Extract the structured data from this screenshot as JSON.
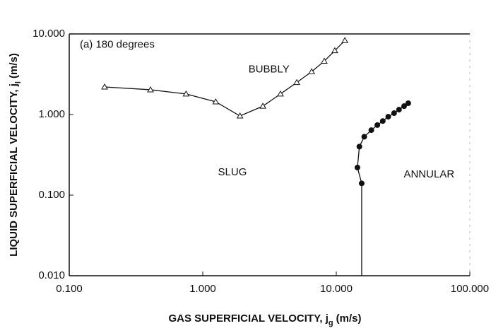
{
  "chart_data": {
    "type": "line",
    "log_x": true,
    "log_y": true,
    "xlabel": {
      "text": "GAS SUPERFICIAL VELOCITY, j",
      "sub": "g",
      "unit": "(m/s)"
    },
    "ylabel": {
      "text": "LIQUID SUPERFICIAL VELOCITY, j",
      "sub": "l",
      "unit": "(m/s)"
    },
    "xlim": [
      0.1,
      100
    ],
    "ylim": [
      0.01,
      10
    ],
    "xticks": [
      {
        "value": 0.1,
        "label": "0.100"
      },
      {
        "value": 1,
        "label": "1.000"
      },
      {
        "value": 10,
        "label": "10.000"
      },
      {
        "value": 100,
        "label": "100.000"
      }
    ],
    "yticks": [
      {
        "value": 0.01,
        "label": "0.010"
      },
      {
        "value": 0.1,
        "label": "0.100"
      },
      {
        "value": 1,
        "label": "1.000"
      },
      {
        "value": 10,
        "label": "10.000"
      }
    ],
    "annotations": [
      {
        "text": "(a) 180 degrees",
        "x": 0.12,
        "y": 7.3
      },
      {
        "text": "BUBBLY",
        "x": 2.2,
        "y": 3.6
      },
      {
        "text": "SLUG",
        "x": 1.3,
        "y": 0.19
      },
      {
        "text": "ANNULAR",
        "x": 32,
        "y": 0.18
      }
    ],
    "series": [
      {
        "marker": "triangle",
        "color": "#111",
        "x": [
          0.184,
          0.406,
          0.75,
          1.25,
          1.9,
          2.82,
          3.82,
          5.06,
          6.54,
          8.13,
          9.75,
          11.6
        ],
        "values": [
          2.2,
          2.03,
          1.8,
          1.44,
          0.96,
          1.27,
          1.8,
          2.5,
          3.4,
          4.6,
          6.2,
          8.3
        ]
      },
      {
        "marker": "circle",
        "color": "#111",
        "x": [
          15.5,
          14.4,
          14.9,
          16.2,
          18.3,
          20.3,
          22.3,
          24.5,
          27.1,
          29.5,
          32.2,
          34.6
        ],
        "values": [
          0.14,
          0.22,
          0.4,
          0.53,
          0.64,
          0.74,
          0.83,
          0.94,
          1.04,
          1.15,
          1.27,
          1.38
        ]
      }
    ]
  }
}
